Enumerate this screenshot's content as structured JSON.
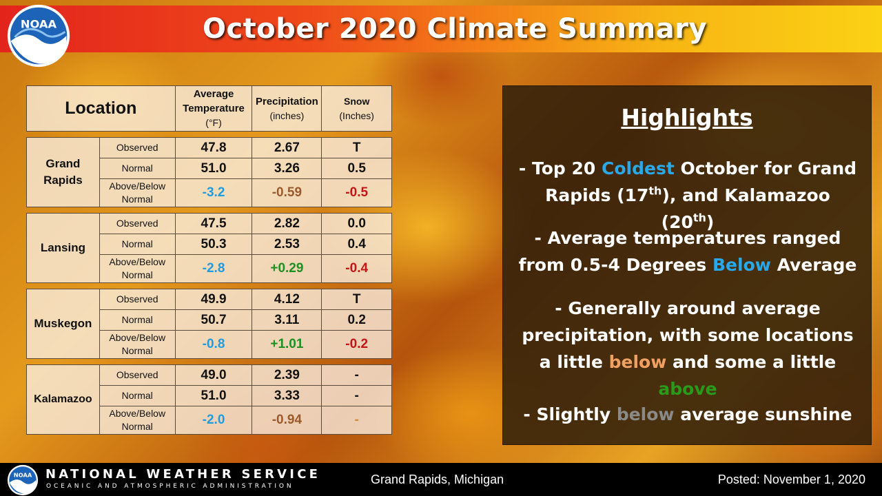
{
  "header": {
    "title": "October 2020 Climate Summary",
    "logo_text": "NOAA"
  },
  "table": {
    "headers": {
      "location": "Location",
      "temperature_line1": "Average",
      "temperature_line2": "Temperature",
      "temperature_unit": "(°F)",
      "precip_line1": "Precipitation",
      "precip_unit": "(inches)",
      "snow_line1": "Snow",
      "snow_unit": "(Inches)"
    },
    "row_labels": {
      "observed": "Observed",
      "normal": "Normal",
      "above_below_1": "Above/Below",
      "above_below_2": "Normal"
    },
    "locations": [
      {
        "name_line1": "Grand",
        "name_line2": "Rapids",
        "observed": {
          "temp": "47.8",
          "precip": "2.67",
          "snow": "T"
        },
        "normal": {
          "temp": "51.0",
          "precip": "3.26",
          "snow": "0.5"
        },
        "departure": {
          "temp": "-3.2",
          "precip": "-0.59",
          "snow": "-0.5"
        }
      },
      {
        "name_line1": "Lansing",
        "name_line2": "",
        "observed": {
          "temp": "47.5",
          "precip": "2.82",
          "snow": "0.0"
        },
        "normal": {
          "temp": "50.3",
          "precip": "2.53",
          "snow": "0.4"
        },
        "departure": {
          "temp": "-2.8",
          "precip": "+0.29",
          "snow": "-0.4"
        }
      },
      {
        "name_line1": "Muskegon",
        "name_line2": "",
        "observed": {
          "temp": "49.9",
          "precip": "4.12",
          "snow": "T"
        },
        "normal": {
          "temp": "50.7",
          "precip": "3.11",
          "snow": "0.2"
        },
        "departure": {
          "temp": "-0.8",
          "precip": "+1.01",
          "snow": "-0.2"
        }
      },
      {
        "name_line1": "Kalamazoo",
        "name_line2": "",
        "observed": {
          "temp": "49.0",
          "precip": "2.39",
          "snow": "-"
        },
        "normal": {
          "temp": "51.0",
          "precip": "3.33",
          "snow": "-"
        },
        "departure": {
          "temp": "-2.0",
          "precip": "-0.94",
          "snow": "-"
        }
      }
    ],
    "colors": {
      "cold": "#1f9ce0",
      "dry": "#9b5a2c",
      "wet": "#1f8f22",
      "snow_deficit": "#c31616",
      "missing": "#d98934"
    }
  },
  "highlights": {
    "title": "Highlights",
    "item1": {
      "a": "- Top 20 ",
      "b": "Coldest",
      "c": " October for Grand Rapids (17",
      "d": "th",
      "e": "), and Kalamazoo (20",
      "f": "th",
      "g": ")"
    },
    "item2": {
      "a": "- Average temperatures ranged from 0.5-4 Degrees ",
      "b": "Below",
      "c": " Average"
    },
    "item3": {
      "a": "- Generally around average precipitation, with some locations a little ",
      "b": "below",
      "c": " and some a little ",
      "d": "above"
    },
    "item4": {
      "a": "- Slightly ",
      "b": "below",
      "c": " average sunshine"
    }
  },
  "footer": {
    "logo_text": "NOAA",
    "agency": "NATIONAL WEATHER SERVICE",
    "agency_sub": "OCEANIC AND ATMOSPHERIC ADMINISTRATION",
    "location": "Grand Rapids, Michigan",
    "posted": "Posted: November  1, 2020"
  }
}
